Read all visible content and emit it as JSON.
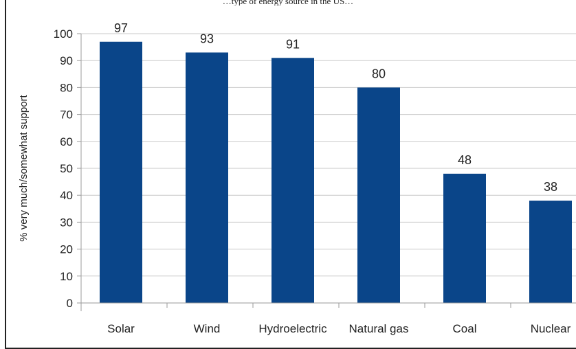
{
  "caption": "…type of energy source in the US…",
  "chart_data": {
    "type": "bar",
    "title": "",
    "xlabel": "",
    "ylabel": "% very much/somewhat support",
    "categories": [
      "Solar",
      "Wind",
      "Hydroelectric",
      "Natural gas",
      "Coal",
      "Nuclear"
    ],
    "values": [
      97,
      93,
      91,
      80,
      48,
      38
    ],
    "ylim": [
      0,
      100
    ],
    "yticks": [
      0,
      10,
      20,
      30,
      40,
      50,
      60,
      70,
      80,
      90,
      100
    ],
    "grid": true,
    "legend": "none",
    "bar_color": "#0a4589",
    "grid_color": "#c8c8c8"
  }
}
